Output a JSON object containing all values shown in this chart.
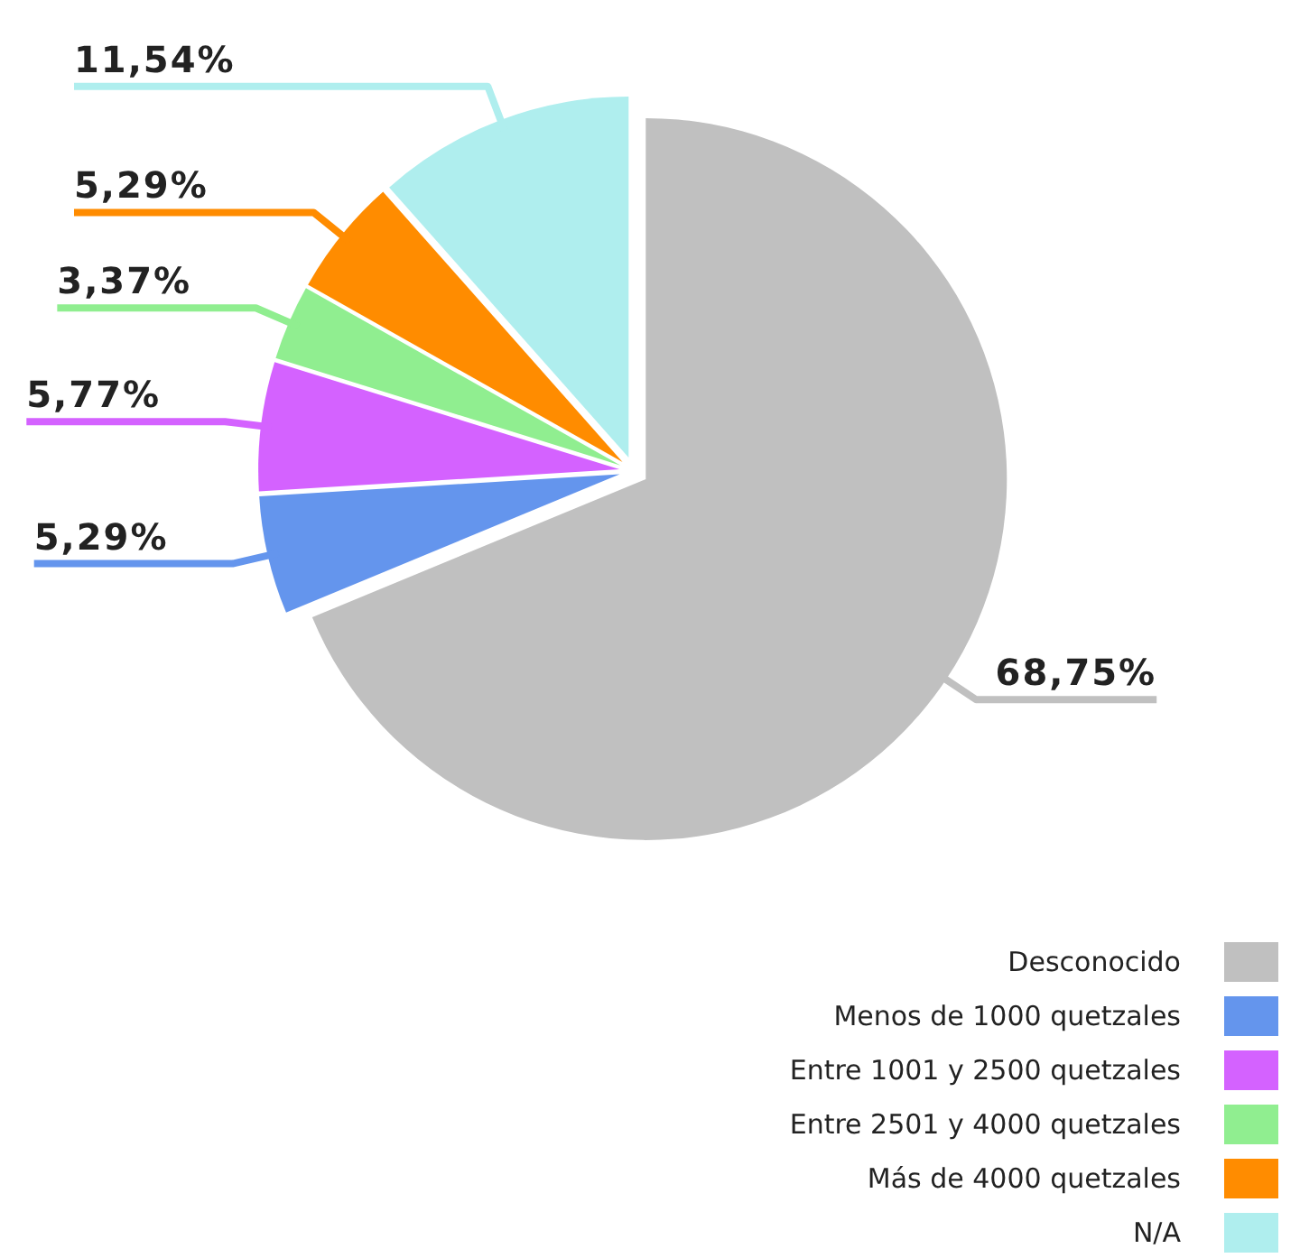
{
  "chart_data": {
    "type": "pie",
    "categories": [
      "Desconocido",
      "Menos de 1000 quetzales",
      "Entre 1001 y 2500 quetzales",
      "Entre 2501 y 4000 quetzales",
      "Más de 4000 quetzales",
      "N/A"
    ],
    "values": [
      68.75,
      5.29,
      5.77,
      3.37,
      5.29,
      11.54
    ],
    "colors": [
      "#c0c0c0",
      "#6495ed",
      "#d462ff",
      "#90ee90",
      "#ff8c00",
      "#afeeee"
    ],
    "value_labels": [
      "68,75%",
      "5,29%",
      "5,77%",
      "3,37%",
      "5,29%",
      "11,54%"
    ],
    "legend": "bottom right"
  }
}
